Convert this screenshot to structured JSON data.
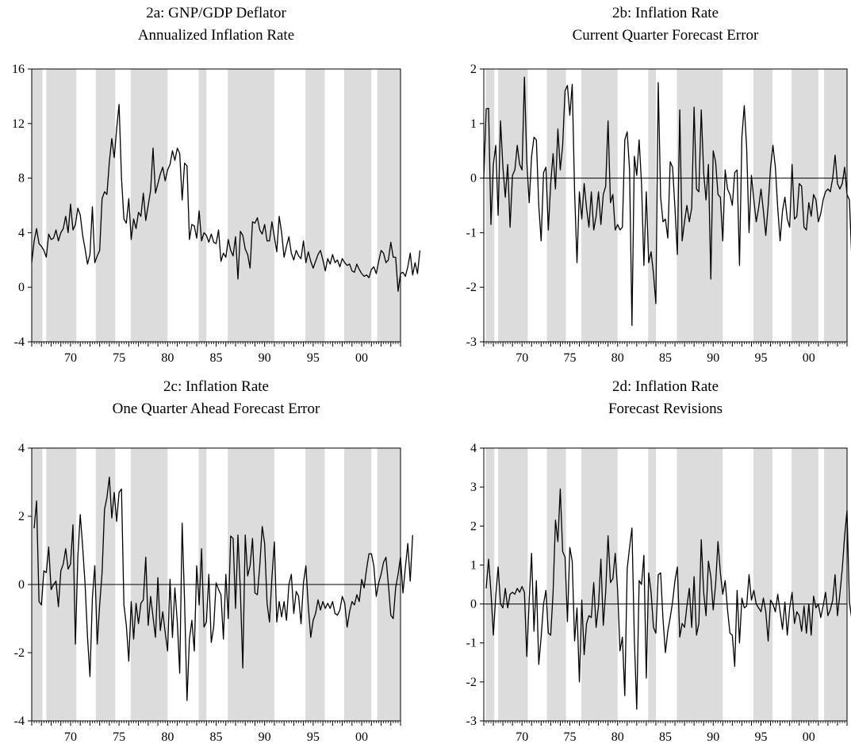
{
  "chart_data": [
    {
      "id": "2a",
      "type": "line",
      "title": "2a: GNP/GDP Deflator",
      "subtitle": "Annualized Inflation Rate",
      "xlabel": "",
      "ylabel": "",
      "xlim": [
        1966.0,
        2004.0
      ],
      "ylim": [
        -4,
        16
      ],
      "yticks": [
        -4,
        0,
        4,
        8,
        12,
        16
      ],
      "xticks": [
        {
          "v": 1970,
          "label": "70"
        },
        {
          "v": 1975,
          "label": "75"
        },
        {
          "v": 1980,
          "label": "80"
        },
        {
          "v": 1985,
          "label": "85"
        },
        {
          "v": 1990,
          "label": "90"
        },
        {
          "v": 1995,
          "label": "95"
        },
        {
          "v": 2000,
          "label": "00"
        }
      ],
      "zero_line": false,
      "shading": [
        [
          1966.0,
          1967.1
        ],
        [
          1967.5,
          1970.6
        ],
        [
          1972.6,
          1974.6
        ],
        [
          1976.2,
          1980.0
        ],
        [
          1983.2,
          1984.0
        ],
        [
          1986.2,
          1991.0
        ],
        [
          1994.2,
          1996.2
        ],
        [
          1998.2,
          2001.0
        ],
        [
          2001.6,
          2004.0
        ]
      ],
      "x_start": 1966.0,
      "x_step": 0.25,
      "values": [
        1.8,
        3.4,
        4.3,
        3.2,
        3.0,
        2.7,
        2.2,
        3.9,
        3.5,
        3.6,
        4.2,
        3.4,
        4.0,
        4.3,
        5.2,
        4.0,
        6.1,
        4.2,
        4.6,
        5.8,
        5.3,
        3.8,
        2.8,
        1.7,
        2.4,
        5.9,
        1.8,
        2.3,
        2.7,
        6.5,
        7.0,
        6.8,
        9.2,
        10.9,
        9.5,
        11.6,
        13.4,
        8.0,
        5.0,
        4.7,
        6.5,
        3.5,
        5.0,
        4.3,
        5.5,
        5.2,
        6.9,
        4.9,
        6.0,
        7.1,
        10.2,
        6.9,
        7.6,
        8.3,
        8.8,
        7.8,
        8.6,
        9.0,
        10.0,
        9.3,
        10.2,
        9.8,
        6.4,
        9.1,
        8.9,
        3.5,
        4.6,
        4.5,
        3.6,
        5.6,
        3.4,
        4.0,
        3.8,
        3.3,
        3.9,
        3.3,
        3.2,
        4.2,
        1.9,
        2.5,
        2.2,
        3.5,
        2.7,
        2.3,
        3.7,
        0.6,
        4.1,
        3.8,
        2.8,
        2.4,
        1.4,
        4.8,
        4.7,
        5.1,
        4.2,
        3.9,
        4.6,
        3.4,
        3.4,
        4.8,
        3.7,
        2.6,
        5.2,
        4.0,
        2.2,
        3.0,
        3.7,
        2.5,
        2.0,
        2.7,
        2.3,
        2.1,
        3.4,
        1.8,
        2.6,
        1.9,
        1.4,
        1.9,
        2.4,
        2.7,
        2.0,
        1.2,
        2.1,
        1.7,
        2.4,
        1.8,
        2.0,
        1.5,
        2.1,
        1.8,
        1.6,
        1.7,
        1.2,
        1.1,
        1.7,
        1.3,
        1.0,
        0.8,
        0.9,
        0.7,
        1.3,
        1.5,
        1.0,
        1.9,
        2.7,
        2.5,
        1.8,
        2.0,
        3.3,
        2.2,
        2.2,
        -0.3,
        1.0,
        1.1,
        0.8,
        1.5,
        2.5,
        0.9,
        1.8,
        1.0,
        2.7
      ]
    },
    {
      "id": "2b",
      "type": "line",
      "title": "2b: Inflation Rate",
      "subtitle": "Current Quarter Forecast Error",
      "xlabel": "",
      "ylabel": "",
      "xlim": [
        1966.0,
        2004.0
      ],
      "ylim": [
        -3,
        2
      ],
      "yticks": [
        -3,
        -2,
        -1,
        0,
        1,
        2
      ],
      "xticks": [
        {
          "v": 1970,
          "label": "70"
        },
        {
          "v": 1975,
          "label": "75"
        },
        {
          "v": 1980,
          "label": "80"
        },
        {
          "v": 1985,
          "label": "85"
        },
        {
          "v": 1990,
          "label": "90"
        },
        {
          "v": 1995,
          "label": "95"
        },
        {
          "v": 2000,
          "label": "00"
        }
      ],
      "zero_line": true,
      "shading": [
        [
          1966.2,
          1967.1
        ],
        [
          1967.5,
          1970.6
        ],
        [
          1972.6,
          1974.6
        ],
        [
          1976.2,
          1980.0
        ],
        [
          1983.2,
          1984.0
        ],
        [
          1986.2,
          1991.0
        ],
        [
          1994.2,
          1996.2
        ],
        [
          1998.2,
          2001.0
        ],
        [
          2001.6,
          2004.0
        ]
      ],
      "x_start": 1966.0,
      "x_step": 0.25,
      "values": [
        0.0,
        1.27,
        1.28,
        -0.85,
        0.25,
        0.6,
        -0.68,
        1.05,
        0.2,
        -0.35,
        0.25,
        -0.9,
        0.05,
        0.15,
        0.6,
        0.25,
        0.15,
        1.85,
        0.3,
        -0.45,
        0.4,
        0.75,
        0.7,
        -0.5,
        -1.15,
        0.1,
        0.2,
        -0.95,
        -0.1,
        0.45,
        -0.2,
        0.9,
        0.15,
        0.6,
        1.6,
        1.7,
        1.15,
        1.72,
        -0.25,
        -1.55,
        -0.25,
        -0.75,
        -0.1,
        -0.55,
        -0.9,
        -0.25,
        -0.95,
        -0.7,
        -0.25,
        -0.85,
        -0.3,
        -0.15,
        1.05,
        -0.45,
        -0.3,
        -0.95,
        -0.85,
        -0.95,
        -0.9,
        0.7,
        0.85,
        0.15,
        -2.7,
        0.4,
        0.05,
        0.7,
        -0.1,
        -1.6,
        -0.25,
        -1.55,
        -1.35,
        -1.75,
        -2.3,
        1.75,
        -0.35,
        -0.8,
        -0.75,
        -1.1,
        0.3,
        0.2,
        -0.55,
        -1.4,
        1.25,
        -1.15,
        -0.8,
        -0.5,
        -0.8,
        -0.55,
        1.3,
        -0.2,
        -0.25,
        1.25,
        0.1,
        -0.4,
        0.25,
        -1.85,
        0.5,
        0.3,
        -0.3,
        -0.35,
        -1.15,
        0.15,
        -0.2,
        -0.3,
        -0.5,
        0.1,
        0.15,
        -1.6,
        0.75,
        1.33,
        0.55,
        -1.0,
        0.05,
        -0.4,
        -0.8,
        -0.55,
        -0.2,
        -0.6,
        -1.05,
        -0.5,
        0.2,
        0.6,
        0.2,
        -0.55,
        -1.15,
        -0.6,
        -0.35,
        -0.75,
        -0.9,
        0.25,
        -0.75,
        -0.7,
        -0.1,
        -0.15,
        -0.9,
        -0.95,
        -0.45,
        -0.7,
        -0.3,
        -0.4,
        -0.8,
        -0.65,
        -0.4,
        -0.25,
        -0.2,
        -0.25,
        0.0,
        0.42,
        -0.1,
        -0.2,
        -0.1,
        0.2,
        -0.3,
        -0.4,
        -1.5,
        -0.55,
        -0.6,
        -0.2,
        -0.1,
        -0.3,
        0.1,
        -0.2,
        0.45,
        -0.05,
        0.2,
        0.1
      ]
    },
    {
      "id": "2c",
      "type": "line",
      "title": "2c: Inflation Rate",
      "subtitle": "One Quarter Ahead Forecast Error",
      "xlabel": "",
      "ylabel": "",
      "xlim": [
        1966.0,
        2004.0
      ],
      "ylim": [
        -4,
        4
      ],
      "yticks": [
        -4,
        -2,
        0,
        2,
        4
      ],
      "xticks": [
        {
          "v": 1970,
          "label": "70"
        },
        {
          "v": 1975,
          "label": "75"
        },
        {
          "v": 1980,
          "label": "80"
        },
        {
          "v": 1985,
          "label": "85"
        },
        {
          "v": 1990,
          "label": "90"
        },
        {
          "v": 1995,
          "label": "95"
        },
        {
          "v": 2000,
          "label": "00"
        }
      ],
      "zero_line": true,
      "shading": [
        [
          1966.0,
          1967.1
        ],
        [
          1967.5,
          1970.6
        ],
        [
          1972.6,
          1974.6
        ],
        [
          1976.2,
          1980.0
        ],
        [
          1983.2,
          1984.0
        ],
        [
          1986.2,
          1991.0
        ],
        [
          1994.2,
          1996.2
        ],
        [
          1998.2,
          2001.0
        ],
        [
          2001.6,
          2004.0
        ]
      ],
      "x_start": 1966.25,
      "x_step": 0.25,
      "values": [
        1.65,
        2.45,
        -0.5,
        -0.6,
        0.4,
        0.35,
        1.1,
        -0.15,
        0.0,
        0.1,
        -0.65,
        0.4,
        0.6,
        1.05,
        0.45,
        0.6,
        1.75,
        -1.75,
        0.8,
        2.05,
        1.1,
        0.0,
        -1.55,
        -2.7,
        -0.4,
        0.55,
        -1.75,
        -0.6,
        0.35,
        2.2,
        2.55,
        3.15,
        1.95,
        2.7,
        1.85,
        2.7,
        2.8,
        -0.6,
        -1.2,
        -2.25,
        -0.5,
        -1.6,
        -0.55,
        -1.15,
        -0.55,
        -0.45,
        0.8,
        -1.2,
        -0.35,
        -0.95,
        -1.55,
        0.2,
        -1.35,
        -0.8,
        -1.4,
        -1.95,
        0.15,
        -1.55,
        -0.1,
        -1.1,
        -2.6,
        1.8,
        -0.5,
        -3.4,
        -1.6,
        -1.05,
        -1.95,
        0.55,
        -0.6,
        1.05,
        -1.25,
        -1.1,
        0.3,
        -1.7,
        -1.25,
        0.05,
        -0.15,
        -0.3,
        -1.6,
        0.3,
        -1.0,
        1.42,
        1.35,
        -0.7,
        1.45,
        -0.2,
        -2.45,
        1.45,
        0.25,
        0.55,
        1.35,
        -0.25,
        -0.3,
        0.55,
        1.7,
        1.2,
        -0.55,
        -1.1,
        0.2,
        1.25,
        -1.1,
        -0.5,
        -0.95,
        -0.5,
        -1.05,
        0.0,
        0.3,
        -0.85,
        -0.2,
        -0.35,
        -1.15,
        0.05,
        0.55,
        -0.65,
        -1.55,
        -1.05,
        -0.85,
        -0.45,
        -0.75,
        -0.5,
        -0.7,
        -0.55,
        -0.7,
        -0.5,
        -0.85,
        -0.9,
        -0.75,
        -0.35,
        -0.55,
        -1.25,
        -0.8,
        -0.5,
        -0.6,
        -0.3,
        -0.5,
        0.15,
        -0.1,
        0.45,
        0.9,
        0.9,
        0.55,
        -0.35,
        0.05,
        0.3,
        0.65,
        0.8,
        0.0,
        -0.9,
        -1.0,
        -0.1,
        0.3,
        0.8,
        -0.25,
        0.5,
        1.2,
        0.1,
        1.45
      ]
    },
    {
      "id": "2d",
      "type": "line",
      "title": "2d: Inflation Rate",
      "subtitle": "Forecast Revisions",
      "xlabel": "",
      "ylabel": "",
      "xlim": [
        1966.0,
        2004.0
      ],
      "ylim": [
        -3,
        4
      ],
      "yticks": [
        -3,
        -2,
        -1,
        0,
        1,
        2,
        3,
        4
      ],
      "xticks": [
        {
          "v": 1970,
          "label": "70"
        },
        {
          "v": 1975,
          "label": "75"
        },
        {
          "v": 1980,
          "label": "80"
        },
        {
          "v": 1985,
          "label": "85"
        },
        {
          "v": 1990,
          "label": "90"
        },
        {
          "v": 1995,
          "label": "95"
        },
        {
          "v": 2000,
          "label": "00"
        }
      ],
      "zero_line": true,
      "shading": [
        [
          1966.2,
          1967.1
        ],
        [
          1967.5,
          1970.6
        ],
        [
          1972.6,
          1974.6
        ],
        [
          1976.2,
          1980.0
        ],
        [
          1983.2,
          1984.0
        ],
        [
          1986.2,
          1991.0
        ],
        [
          1994.2,
          1996.2
        ],
        [
          1998.2,
          2001.0
        ],
        [
          2001.6,
          2004.0
        ]
      ],
      "x_start": 1966.25,
      "x_step": 0.25,
      "values": [
        0.4,
        1.15,
        0.3,
        -0.8,
        0.2,
        0.95,
        0.0,
        -0.1,
        0.4,
        -0.1,
        0.25,
        0.3,
        0.25,
        0.4,
        0.3,
        0.45,
        0.3,
        -1.35,
        0.1,
        1.3,
        -0.7,
        0.6,
        -1.55,
        -0.85,
        0.0,
        0.35,
        -0.75,
        -0.8,
        0.3,
        2.15,
        1.6,
        2.95,
        1.35,
        1.2,
        -0.45,
        1.45,
        1.1,
        -0.95,
        -0.1,
        -2.0,
        0.1,
        -1.3,
        -0.5,
        -0.3,
        -0.35,
        0.55,
        -0.6,
        -0.05,
        1.15,
        -0.55,
        0.3,
        1.75,
        0.55,
        0.65,
        1.3,
        0.35,
        -1.2,
        -0.85,
        -2.35,
        0.9,
        1.45,
        1.95,
        -0.9,
        -2.7,
        0.6,
        0.5,
        1.25,
        -1.9,
        0.8,
        0.3,
        -0.6,
        -0.75,
        0.75,
        0.8,
        -0.4,
        -1.25,
        -0.7,
        -0.35,
        0.05,
        0.6,
        0.95,
        -0.85,
        -0.5,
        -0.6,
        -0.05,
        0.4,
        -0.6,
        0.7,
        -0.8,
        -0.5,
        1.65,
        0.3,
        -0.3,
        1.1,
        0.7,
        -0.15,
        0.5,
        1.6,
        0.8,
        0.25,
        0.6,
        -0.15,
        -0.75,
        -0.8,
        -1.6,
        0.35,
        -1.0,
        0.15,
        -0.1,
        -0.05,
        0.75,
        0.1,
        0.35,
        0.0,
        -0.1,
        -0.2,
        0.15,
        -0.2,
        -0.95,
        0.1,
        0.0,
        -0.2,
        0.25,
        -0.2,
        -0.65,
        0.05,
        -0.8,
        -0.1,
        0.3,
        -0.5,
        -0.2,
        -0.3,
        -0.7,
        -0.05,
        -0.75,
        0.0,
        -0.8,
        0.2,
        -0.1,
        0.0,
        -0.35,
        -0.05,
        0.3,
        -0.3,
        -0.15,
        0.1,
        0.75,
        -0.3,
        0.25,
        0.9,
        1.75,
        2.4,
        0.05,
        -0.4,
        -0.8,
        -0.05,
        0.9,
        0.05,
        -0.15,
        1.0,
        -0.05
      ]
    }
  ]
}
